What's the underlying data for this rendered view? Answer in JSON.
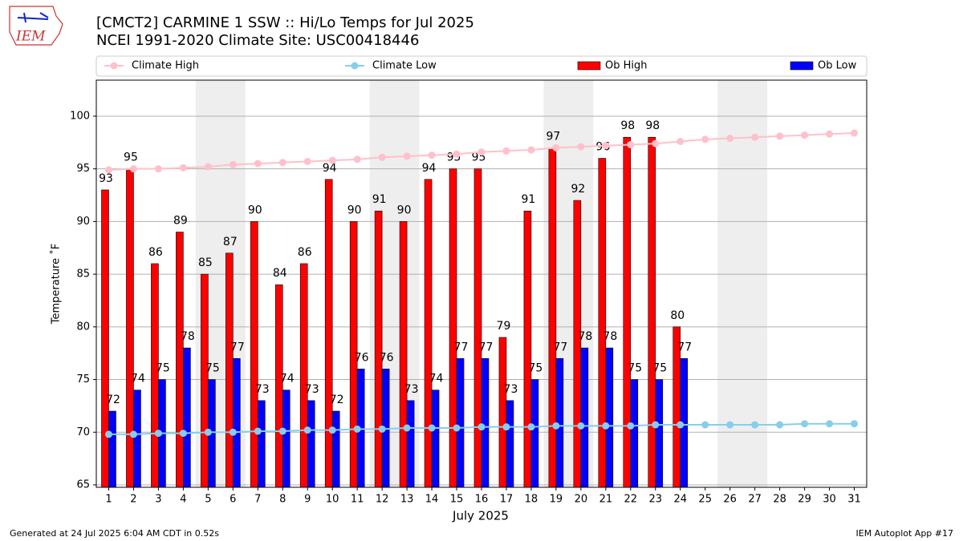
{
  "chart_data": {
    "type": "bar",
    "logo": "IEM",
    "title": "[CMCT2] CARMINE 1 SSW :: Hi/Lo Temps for Jul 2025",
    "subtitle": "NCEI 1991-2020 Climate Site: USC00418446",
    "xlabel": "July 2025",
    "ylabel": "Temperature ˚F",
    "footer_left": "Generated at 24 Jul 2025 6:04 AM CDT in 0.52s",
    "footer_right": "IEM Autoplot App #17",
    "categories": [
      "1",
      "2",
      "3",
      "4",
      "5",
      "6",
      "7",
      "8",
      "9",
      "10",
      "11",
      "12",
      "13",
      "14",
      "15",
      "16",
      "17",
      "18",
      "19",
      "20",
      "21",
      "22",
      "23",
      "24",
      "25",
      "26",
      "27",
      "28",
      "29",
      "30",
      "31"
    ],
    "series": [
      {
        "name": "Climate High",
        "type": "line",
        "color": "#ffc0cb",
        "values": [
          94.9,
          95.0,
          95.0,
          95.1,
          95.2,
          95.4,
          95.5,
          95.6,
          95.7,
          95.8,
          95.9,
          96.1,
          96.2,
          96.3,
          96.4,
          96.6,
          96.7,
          96.8,
          97.0,
          97.1,
          97.2,
          97.3,
          97.4,
          97.6,
          97.8,
          97.9,
          98.0,
          98.1,
          98.2,
          98.3,
          98.4
        ]
      },
      {
        "name": "Climate Low",
        "type": "line",
        "color": "#87ceeb",
        "values": [
          69.8,
          69.8,
          69.9,
          69.9,
          70.0,
          70.0,
          70.1,
          70.1,
          70.2,
          70.2,
          70.3,
          70.3,
          70.4,
          70.4,
          70.4,
          70.5,
          70.5,
          70.5,
          70.6,
          70.6,
          70.6,
          70.6,
          70.7,
          70.7,
          70.7,
          70.7,
          70.7,
          70.7,
          70.8,
          70.8,
          70.8
        ]
      },
      {
        "name": "Ob High",
        "type": "bar",
        "color": "#ff0000",
        "values": [
          93,
          95,
          86,
          89,
          85,
          87,
          90,
          84,
          86,
          94,
          90,
          91,
          90,
          94,
          95,
          95,
          79,
          91,
          97,
          92,
          96,
          98,
          98,
          80,
          null,
          null,
          null,
          null,
          null,
          null,
          null
        ]
      },
      {
        "name": "Ob Low",
        "type": "bar",
        "color": "#0000ff",
        "values": [
          72,
          74,
          75,
          78,
          75,
          77,
          73,
          74,
          73,
          72,
          76,
          76,
          73,
          74,
          77,
          77,
          73,
          75,
          77,
          78,
          78,
          75,
          75,
          77,
          null,
          null,
          null,
          null,
          null,
          null,
          null
        ]
      }
    ],
    "ylim": [
      64.77,
      103.42
    ],
    "yticks": [
      65,
      70,
      75,
      80,
      85,
      90,
      95,
      100
    ],
    "grid": true
  }
}
